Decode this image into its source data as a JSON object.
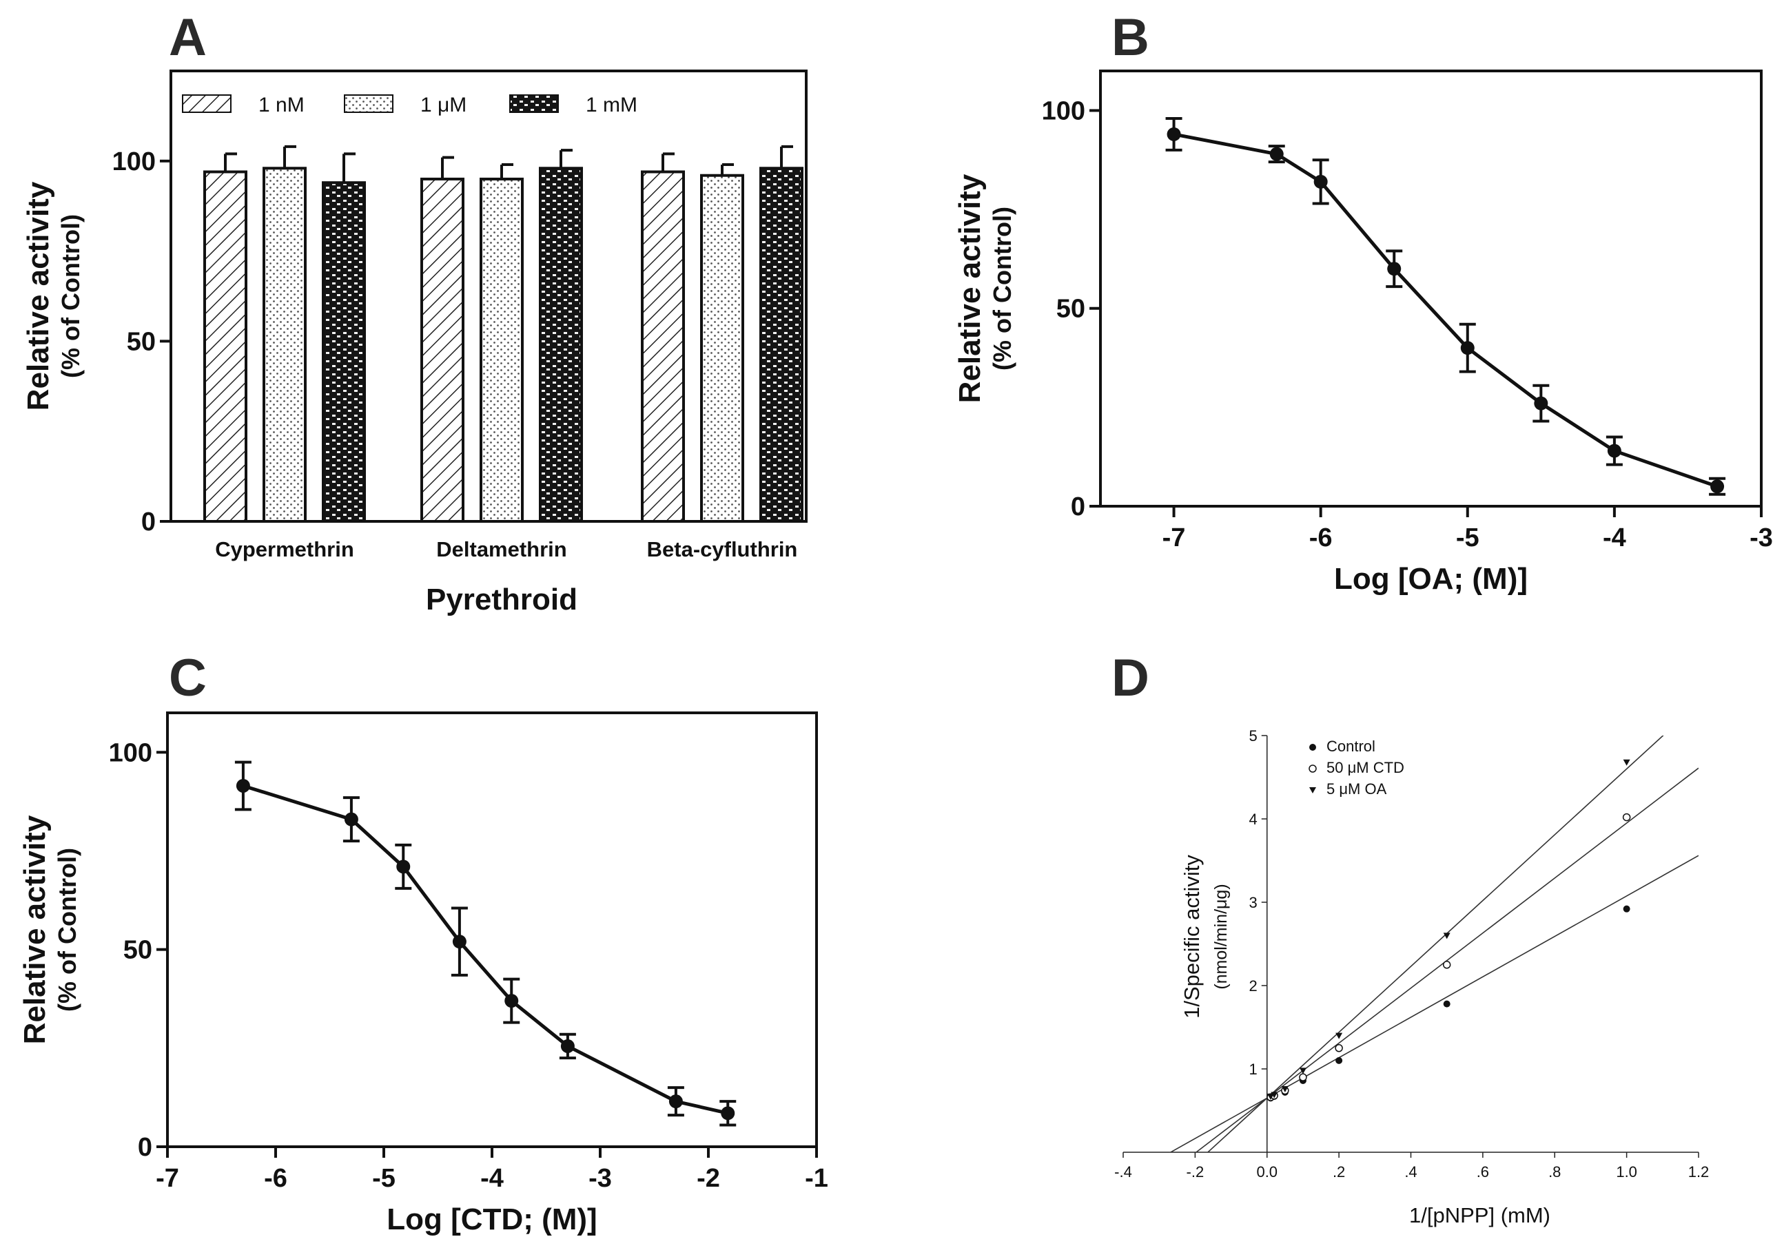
{
  "chart_data": [
    {
      "panel": "A",
      "type": "bar",
      "xlabel": "Pyrethroid",
      "ylabel": "Relative activity",
      "ylabel_sub": "(% of Control)",
      "ylim": [
        0,
        125
      ],
      "yticks": [
        0,
        50,
        100
      ],
      "legend_position": "top-left",
      "categories": [
        "Cypermethrin",
        "Deltamethrin",
        "Beta-cyfluthrin"
      ],
      "series": [
        {
          "name": "1 nM",
          "pattern": "diagonal",
          "values": [
            97,
            95,
            97
          ],
          "errors": [
            5,
            6,
            5
          ]
        },
        {
          "name": "1 μM",
          "pattern": "dotted",
          "values": [
            98,
            95,
            96
          ],
          "errors": [
            6,
            4,
            3
          ]
        },
        {
          "name": "1 mM",
          "pattern": "brick",
          "values": [
            94,
            98,
            98
          ],
          "errors": [
            8,
            5,
            6
          ]
        }
      ]
    },
    {
      "panel": "B",
      "type": "line",
      "xlabel": "Log [OA; (M)]",
      "ylabel": "Relative activity",
      "ylabel_sub": "(% of Control)",
      "xlim": [
        -7.5,
        -3
      ],
      "ylim": [
        0,
        110
      ],
      "xticks": [
        -7,
        -6,
        -5,
        -4,
        -3
      ],
      "yticks": [
        0,
        50,
        100
      ],
      "x": [
        -7,
        -6.3,
        -6,
        -5.5,
        -5,
        -4.5,
        -4,
        -3.3
      ],
      "y": [
        94,
        89,
        82,
        60,
        40,
        26,
        14,
        5
      ],
      "errors": [
        4,
        2,
        5.5,
        4.5,
        6,
        4.5,
        3.5,
        2
      ]
    },
    {
      "panel": "C",
      "type": "line",
      "xlabel": "Log [CTD; (M)]",
      "ylabel": "Relative activity",
      "ylabel_sub": "(% of Control)",
      "xlim": [
        -7,
        -1
      ],
      "ylim": [
        0,
        110
      ],
      "xticks": [
        -7,
        -6,
        -5,
        -4,
        -3,
        -2,
        -1
      ],
      "yticks": [
        0,
        50,
        100
      ],
      "x": [
        -6.3,
        -5.3,
        -4.82,
        -4.3,
        -3.82,
        -3.3,
        -2.3,
        -1.82
      ],
      "y": [
        91.5,
        83,
        71,
        52,
        37,
        25.5,
        11.5,
        8.5
      ],
      "errors": [
        6,
        5.5,
        5.5,
        8.5,
        5.5,
        3,
        3.5,
        3
      ]
    },
    {
      "panel": "D",
      "type": "scatter",
      "xlabel": "1/[pNPP] (mM)",
      "ylabel": "1/Specific activity",
      "ylabel_sub": "(nmol/min/μg)",
      "xlim": [
        -0.4,
        1.2
      ],
      "ylim": [
        0,
        5
      ],
      "xticks": [
        -0.4,
        -0.2,
        0.0,
        0.2,
        0.4,
        0.6,
        0.8,
        1.0,
        1.2
      ],
      "xtick_labels": [
        "-.4",
        "-.2",
        "0.0",
        ".2",
        ".4",
        ".6",
        ".8",
        "1.0",
        "1.2"
      ],
      "yticks": [
        1,
        2,
        3,
        4,
        5
      ],
      "legend_position": "top-left",
      "series": [
        {
          "name": "Control",
          "marker": "filled-circle",
          "x": [
            0.01,
            0.02,
            0.05,
            0.1,
            0.2,
            0.5,
            1.0
          ],
          "y": [
            0.65,
            0.67,
            0.72,
            0.86,
            1.1,
            1.78,
            2.92
          ],
          "fit": [
            0.65,
            2.425
          ]
        },
        {
          "name": "50 μM CTD",
          "marker": "open-circle",
          "x": [
            0.01,
            0.02,
            0.05,
            0.1,
            0.2,
            0.5,
            1.0
          ],
          "y": [
            0.66,
            0.68,
            0.74,
            0.9,
            1.25,
            2.25,
            4.02
          ],
          "fit": [
            0.65,
            3.3
          ]
        },
        {
          "name": "5 μM OA",
          "marker": "filled-triangle-down",
          "x": [
            0.01,
            0.02,
            0.05,
            0.1,
            0.2,
            0.5,
            1.0
          ],
          "y": [
            0.67,
            0.69,
            0.76,
            0.98,
            1.4,
            2.6,
            4.68
          ],
          "fit": [
            0.65,
            3.95
          ]
        }
      ]
    }
  ],
  "panels": [
    {
      "letter": "A"
    },
    {
      "letter": "B"
    },
    {
      "letter": "C"
    },
    {
      "letter": "D"
    }
  ]
}
